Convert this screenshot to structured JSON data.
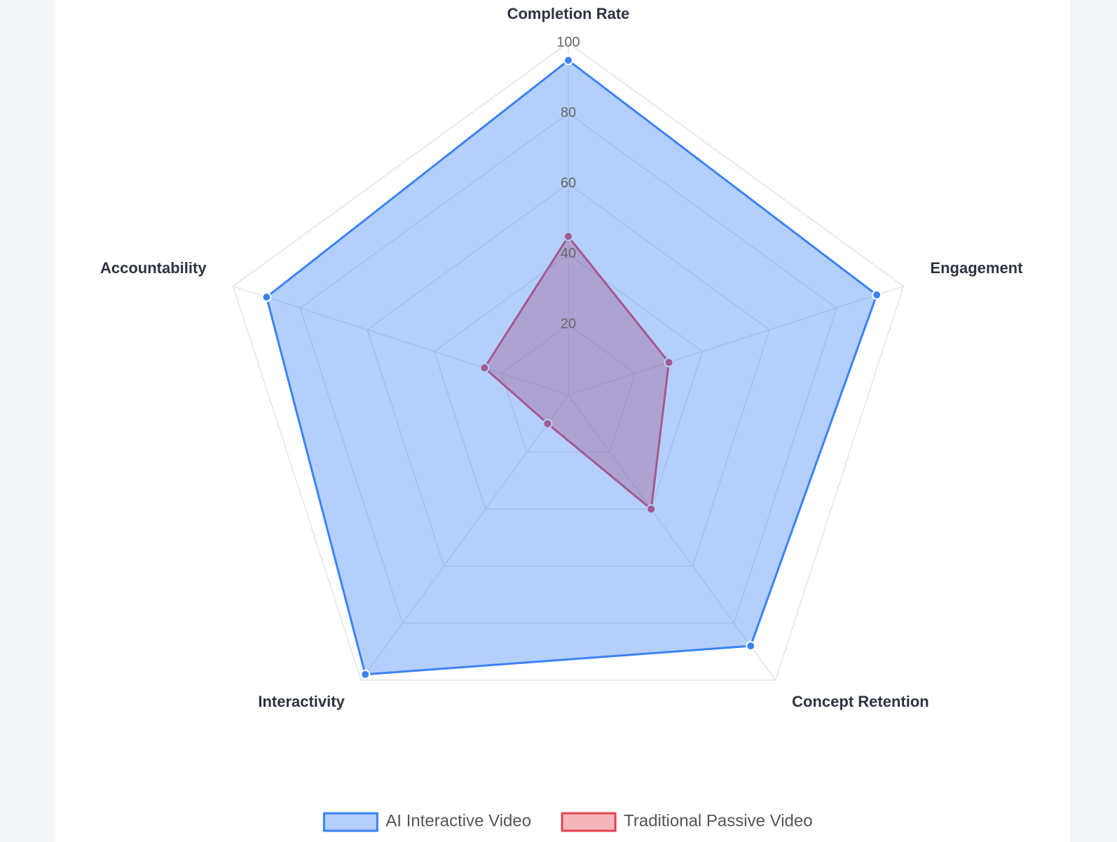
{
  "chart_data": {
    "type": "radar",
    "categories": [
      "Completion Rate",
      "Engagement",
      "Concept Retention",
      "Interactivity",
      "Accountability"
    ],
    "rlim": [
      0,
      100
    ],
    "rticks": [
      20,
      40,
      60,
      80,
      100
    ],
    "grid": true,
    "legend": "bottom",
    "series": [
      {
        "name": "AI Interactive Video",
        "color": "#3b82f6",
        "values": [
          95,
          92,
          88,
          98,
          90
        ]
      },
      {
        "name": "Traditional Passive Video",
        "color": "#e5414f",
        "values": [
          45,
          30,
          40,
          10,
          25
        ]
      }
    ]
  }
}
